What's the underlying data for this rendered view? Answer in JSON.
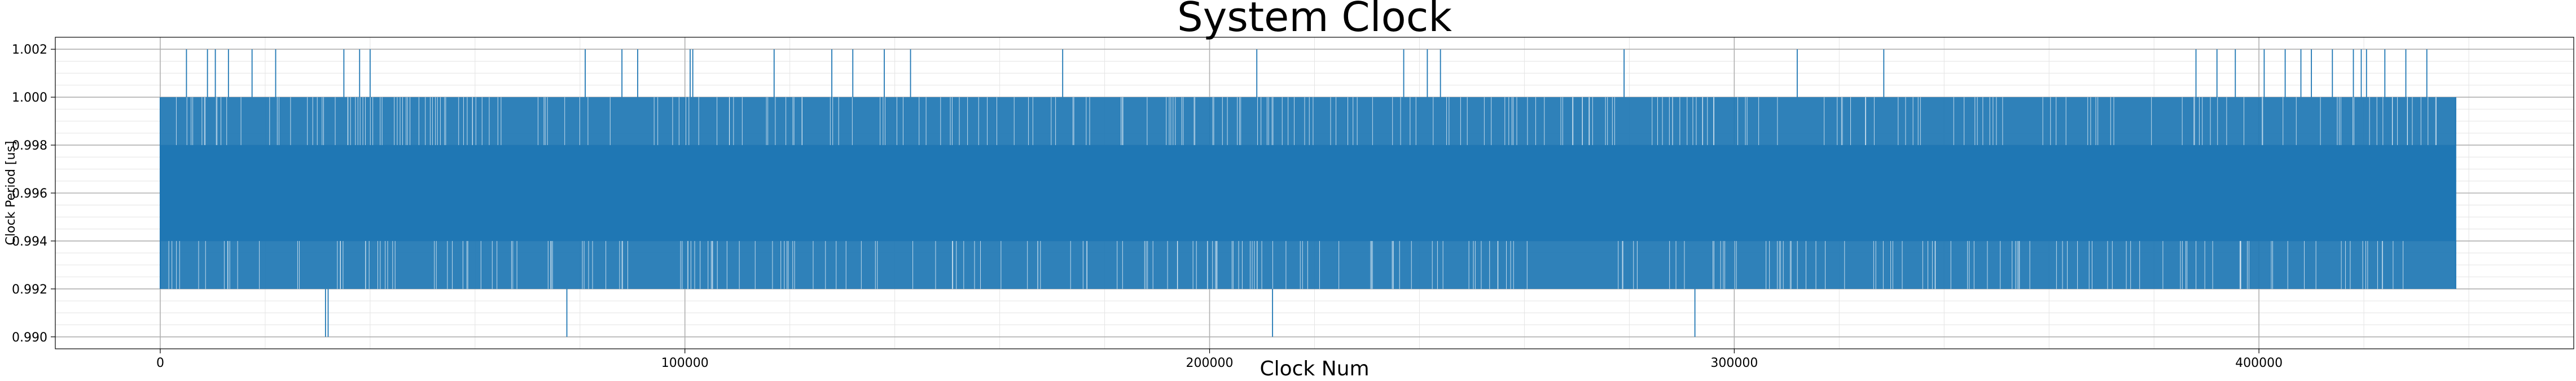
{
  "chart_data": {
    "type": "line",
    "title": "System Clock",
    "xlabel": "Clock Num",
    "ylabel": "Clock Period [us]",
    "xlim": [
      -20000,
      460000
    ],
    "ylim": [
      0.9895,
      1.0025
    ],
    "x_ticks": [
      0,
      100000,
      200000,
      300000,
      400000
    ],
    "x_tick_labels": [
      "0",
      "100000",
      "200000",
      "300000",
      "400000"
    ],
    "y_ticks": [
      0.99,
      0.992,
      0.994,
      0.996,
      0.998,
      1.0,
      1.002
    ],
    "y_tick_labels": [
      "0.990",
      "0.992",
      "0.994",
      "0.996",
      "0.998",
      "1.000",
      "1.002"
    ],
    "grid": true,
    "minor_grid": true,
    "series": [
      {
        "color": "#1f77b4",
        "x_range": [
          0,
          437500
        ],
        "dense_band": [
          0.992,
          1.0
        ],
        "core_band": [
          0.994,
          0.998
        ],
        "spikes_high": [
          {
            "x": 5000,
            "y": 1.002
          },
          {
            "x": 9000,
            "y": 1.002
          },
          {
            "x": 10500,
            "y": 1.002
          },
          {
            "x": 13000,
            "y": 1.002
          },
          {
            "x": 17500,
            "y": 1.002
          },
          {
            "x": 22000,
            "y": 1.002
          },
          {
            "x": 35000,
            "y": 1.002
          },
          {
            "x": 38000,
            "y": 1.002
          },
          {
            "x": 40000,
            "y": 1.002
          },
          {
            "x": 81000,
            "y": 1.002
          },
          {
            "x": 88000,
            "y": 1.002
          },
          {
            "x": 91000,
            "y": 1.002
          },
          {
            "x": 101000,
            "y": 1.002
          },
          {
            "x": 101500,
            "y": 1.002
          },
          {
            "x": 117000,
            "y": 1.002
          },
          {
            "x": 128000,
            "y": 1.002
          },
          {
            "x": 132000,
            "y": 1.002
          },
          {
            "x": 138000,
            "y": 1.002
          },
          {
            "x": 143000,
            "y": 1.002
          },
          {
            "x": 172000,
            "y": 1.002
          },
          {
            "x": 209000,
            "y": 1.002
          },
          {
            "x": 237000,
            "y": 1.002
          },
          {
            "x": 241500,
            "y": 1.002
          },
          {
            "x": 244000,
            "y": 1.002
          },
          {
            "x": 279000,
            "y": 1.002
          },
          {
            "x": 312000,
            "y": 1.002
          },
          {
            "x": 328500,
            "y": 1.002
          },
          {
            "x": 388000,
            "y": 1.002
          },
          {
            "x": 392000,
            "y": 1.002
          },
          {
            "x": 395500,
            "y": 1.002
          },
          {
            "x": 401000,
            "y": 1.002
          },
          {
            "x": 405000,
            "y": 1.002
          },
          {
            "x": 408000,
            "y": 1.002
          },
          {
            "x": 410000,
            "y": 1.002
          },
          {
            "x": 414000,
            "y": 1.002
          },
          {
            "x": 418000,
            "y": 1.002
          },
          {
            "x": 419500,
            "y": 1.002
          },
          {
            "x": 420500,
            "y": 1.002
          },
          {
            "x": 424000,
            "y": 1.002
          },
          {
            "x": 428000,
            "y": 1.002
          },
          {
            "x": 432000,
            "y": 1.002
          }
        ],
        "spikes_low": [
          {
            "x": 31500,
            "y": 0.99
          },
          {
            "x": 32000,
            "y": 0.99
          },
          {
            "x": 77500,
            "y": 0.99
          },
          {
            "x": 212000,
            "y": 0.99
          },
          {
            "x": 292500,
            "y": 0.99
          }
        ]
      }
    ]
  }
}
